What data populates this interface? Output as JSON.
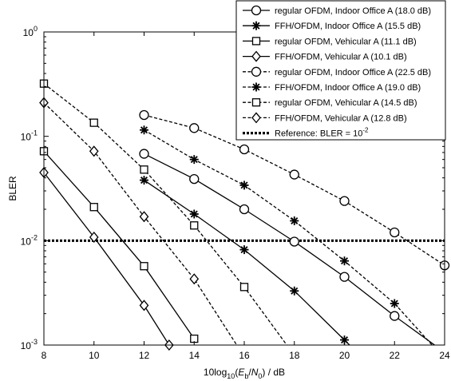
{
  "chart_data": {
    "type": "line",
    "xlabel": "10log10(Eb/N0) / dB",
    "ylabel": "BLER",
    "xlim": [
      8,
      24
    ],
    "ylim": [
      0.001,
      1
    ],
    "yscale": "log",
    "grid": false,
    "legend_position": "top-right",
    "x_ticks": [
      8,
      10,
      12,
      14,
      16,
      18,
      20,
      22,
      24
    ],
    "y_ticks": [
      {
        "value": 1,
        "mantissa": "10",
        "exp": "0"
      },
      {
        "value": 0.1,
        "mantissa": "10",
        "exp": "-1"
      },
      {
        "value": 0.01,
        "mantissa": "10",
        "exp": "-2"
      },
      {
        "value": 0.001,
        "mantissa": "10",
        "exp": "-3"
      }
    ],
    "series": [
      {
        "name": "regular OFDM, Indoor Office A (18.0 dB)",
        "marker": "circle",
        "style": "solid",
        "x": [
          12,
          14,
          16,
          18,
          20,
          22,
          23.6
        ],
        "y": [
          0.068,
          0.039,
          0.02,
          0.0098,
          0.0045,
          0.0019,
          0.001
        ]
      },
      {
        "name": "FFH/OFDM, Indoor Office A (15.5 dB)",
        "marker": "star",
        "style": "solid",
        "x": [
          12,
          14,
          16,
          18,
          20,
          20.3
        ],
        "y": [
          0.038,
          0.018,
          0.0082,
          0.0033,
          0.00112,
          0.00095
        ]
      },
      {
        "name": "regular OFDM, Vehicular A (11.1 dB)",
        "marker": "square",
        "style": "solid",
        "x": [
          8,
          10,
          12,
          14
        ],
        "y": [
          0.072,
          0.021,
          0.0057,
          0.00115
        ]
      },
      {
        "name": "FFH/OFDM, Vehicular A (10.1 dB)",
        "marker": "diamond",
        "style": "solid",
        "x": [
          8,
          10,
          12,
          13
        ],
        "y": [
          0.045,
          0.0108,
          0.0024,
          0.001
        ]
      },
      {
        "name": "regular OFDM, Indoor Office A (22.5 dB)",
        "marker": "circle",
        "style": "dashed",
        "x": [
          12,
          14,
          16,
          18,
          20,
          22,
          24
        ],
        "y": [
          0.16,
          0.12,
          0.075,
          0.043,
          0.024,
          0.012,
          0.0058
        ]
      },
      {
        "name": "FFH/OFDM, Indoor Office A (19.0 dB)",
        "marker": "star",
        "style": "dashed",
        "x": [
          12,
          14,
          16,
          18,
          20,
          22,
          23.5
        ],
        "y": [
          0.115,
          0.06,
          0.034,
          0.0155,
          0.0064,
          0.0025,
          0.001
        ]
      },
      {
        "name": "regular OFDM, Vehicular A (14.5 dB)",
        "marker": "square",
        "style": "dashed",
        "x": [
          8,
          10,
          12,
          14,
          16,
          17.7
        ],
        "y": [
          0.32,
          0.135,
          0.048,
          0.014,
          0.0036,
          0.001
        ]
      },
      {
        "name": "FFH/OFDM, Vehicular A (12.8 dB)",
        "marker": "diamond",
        "style": "dashed",
        "x": [
          8,
          10,
          12,
          14,
          15.7
        ],
        "y": [
          0.21,
          0.072,
          0.017,
          0.0043,
          0.001
        ]
      },
      {
        "name": "Reference: BLER = 10",
        "name_sup": "-2",
        "marker": "none",
        "style": "dotted-thick",
        "x": [
          8,
          24
        ],
        "y": [
          0.01,
          0.01
        ]
      }
    ]
  }
}
